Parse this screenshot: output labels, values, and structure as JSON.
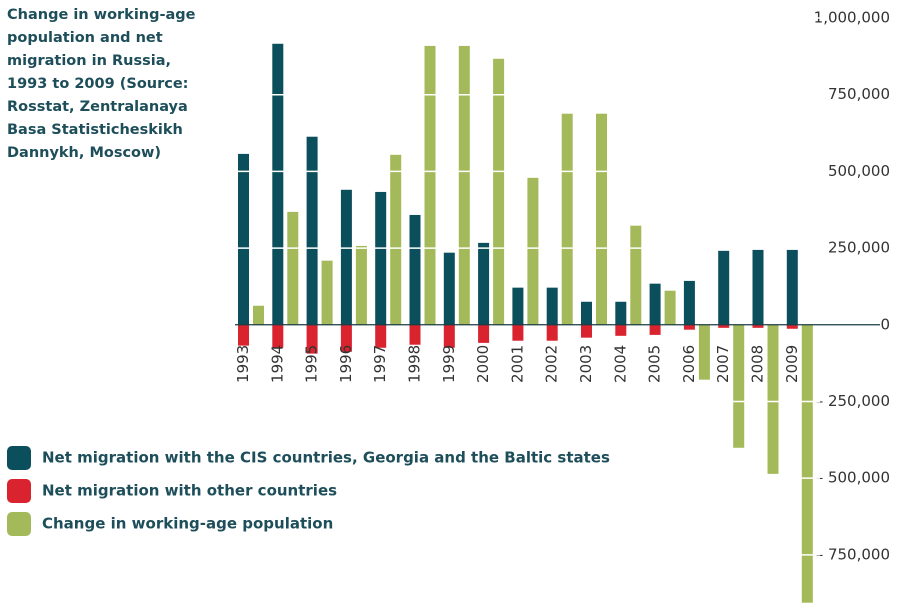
{
  "chart_data": {
    "type": "bar",
    "title": "Change in working-age population and net migration in Russia, 1993 to 2009 (Source: Rosstat, Zentralanaya Basa Statisticheskikh Dannykh, Moscow)",
    "categories": [
      "1993",
      "1994",
      "1995",
      "1996",
      "1997",
      "1998",
      "1999",
      "2000",
      "2001",
      "2002",
      "2003",
      "2004",
      "2005",
      "2006",
      "2007",
      "2008",
      "2009"
    ],
    "series": [
      {
        "name": "Net migration with the CIS countries, Georgia and the Baltic states",
        "color": "#0b4f5c",
        "values": [
          557000,
          916000,
          613000,
          440000,
          433000,
          358000,
          235000,
          267000,
          121000,
          121000,
          75000,
          75000,
          134000,
          143000,
          241000,
          244000,
          244000
        ]
      },
      {
        "name": "Net migration with other countries",
        "color": "#d9232e",
        "values": [
          -68000,
          -75000,
          -94000,
          -88000,
          -75000,
          -65000,
          -75000,
          -59000,
          -52000,
          -52000,
          -42000,
          -36000,
          -33000,
          -16000,
          -10000,
          -10000,
          -13000
        ]
      },
      {
        "name": "Change in working-age population",
        "color": "#a4b95a",
        "values": [
          62000,
          368000,
          209000,
          257000,
          554000,
          909000,
          909000,
          867000,
          479000,
          688000,
          688000,
          323000,
          111000,
          -179000,
          -401000,
          -486000,
          -906000
        ]
      }
    ],
    "ylim": [
      -920000,
      1000000
    ],
    "yticks": [
      {
        "value": 1000000,
        "label": "1,000,000"
      },
      {
        "value": 750000,
        "label": "750,000"
      },
      {
        "value": 500000,
        "label": "500,000"
      },
      {
        "value": 250000,
        "label": "250,000"
      },
      0,
      {
        "value": -250000,
        "label": "– 250,000"
      },
      {
        "value": -500000,
        "label": "– 500,000"
      },
      {
        "value": -750000,
        "label": "– 750,000"
      }
    ],
    "grid": true
  }
}
